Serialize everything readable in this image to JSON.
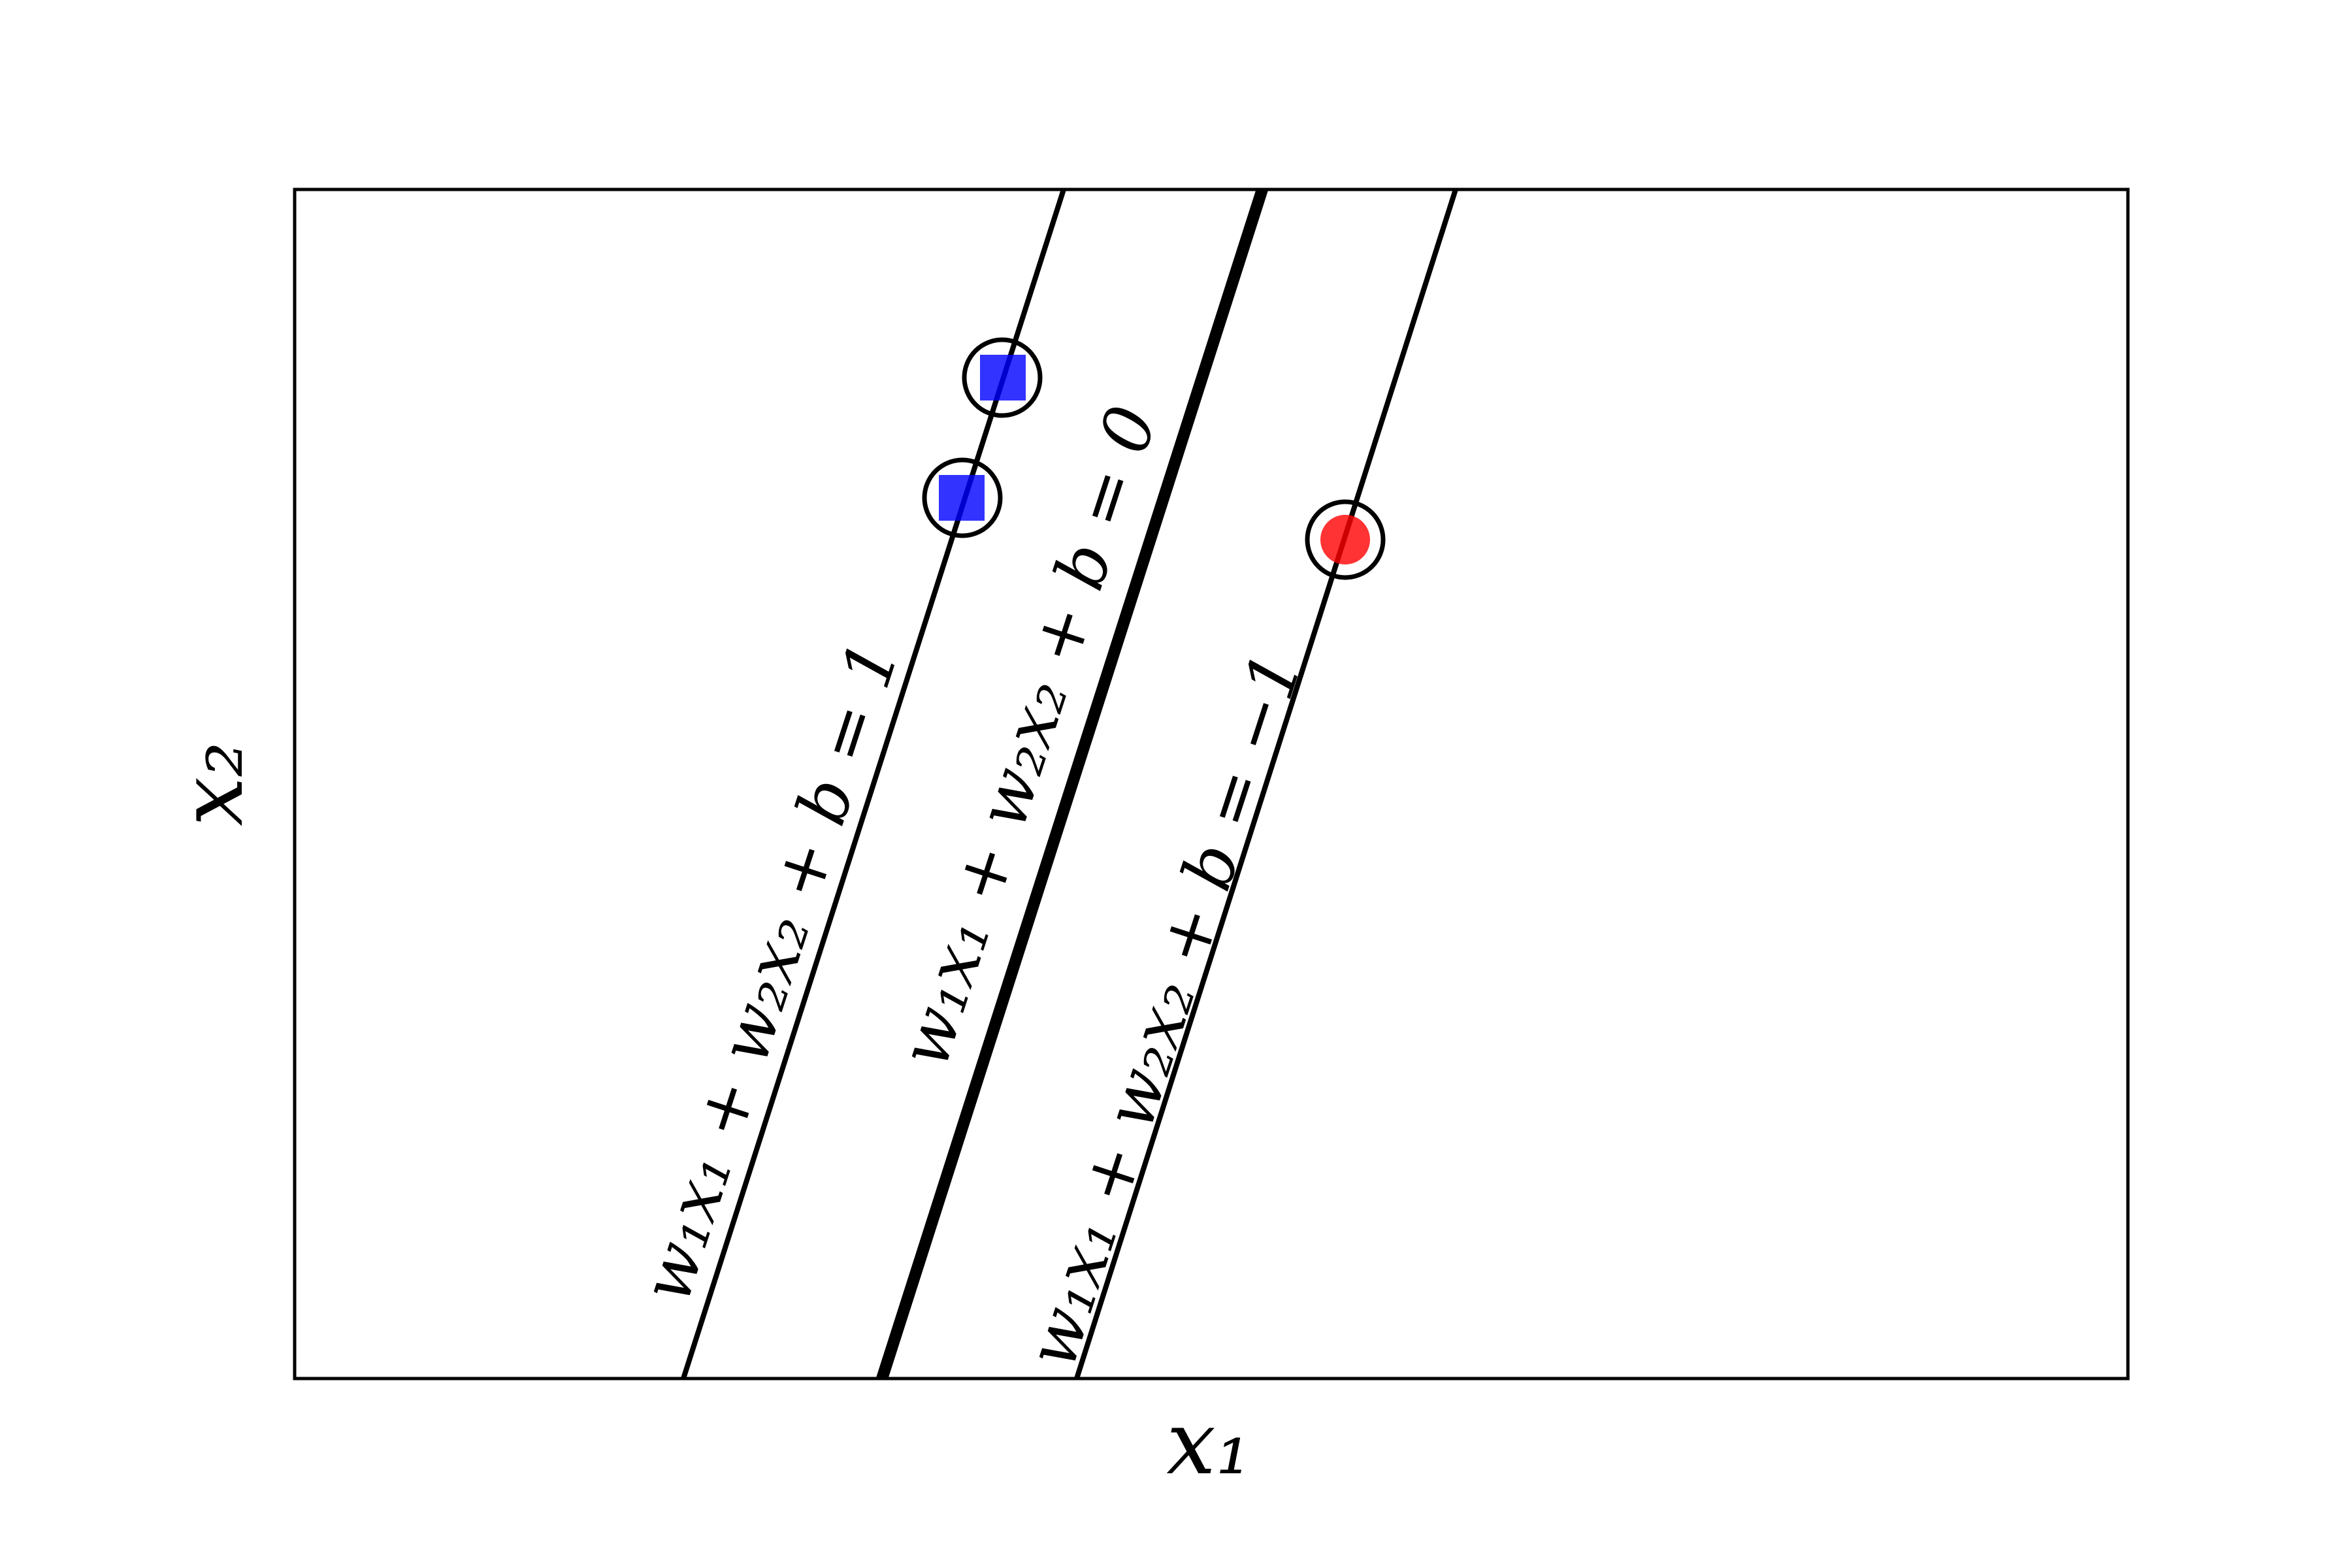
{
  "axes": {
    "xlabel": "x₁",
    "ylabel": "x₂"
  },
  "lines": [
    {
      "id": "margin-positive",
      "label": "w₁x₁ + w₂x₂ + b = 1"
    },
    {
      "id": "decision-boundary",
      "label": "w₁x₁ + w₂x₂ + b = 0"
    },
    {
      "id": "margin-negative",
      "label": "w₁x₁ + w₂x₂ + b = −1"
    }
  ],
  "points": [
    {
      "class": "positive",
      "marker": "square",
      "color": "#0000ff"
    },
    {
      "class": "positive",
      "marker": "square",
      "color": "#0000ff"
    },
    {
      "class": "negative",
      "marker": "circle",
      "color": "#ff0000"
    }
  ],
  "styles": {
    "support_vector_ring": "#000000",
    "frame": "#000000"
  }
}
